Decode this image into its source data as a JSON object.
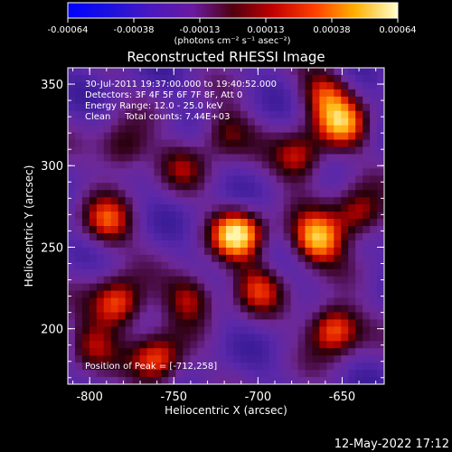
{
  "colorbar": {
    "ticks": [
      "-0.00064",
      "-0.00038",
      "-0.00013",
      "0.00013",
      "0.00038",
      "0.00064"
    ],
    "units": "(photons cm⁻² s⁻¹ asec⁻²)",
    "range": [
      -0.00064,
      0.00064
    ]
  },
  "chart_data": {
    "type": "heatmap",
    "title": "Reconstructed RHESSI Image",
    "xlabel": "Heliocentric X (arcsec)",
    "ylabel": "Heliocentric Y (arcsec)",
    "xlim": [
      -813,
      -625
    ],
    "ylim": [
      166,
      360
    ],
    "x_ticks": [
      "-800",
      "-750",
      "-700",
      "-650"
    ],
    "y_ticks": [
      "200",
      "250",
      "300",
      "350"
    ],
    "x_tick_values": [
      -800,
      -750,
      -700,
      -650
    ],
    "y_tick_values": [
      200,
      250,
      300,
      350
    ],
    "annotations": [
      "30-Jul-2011 19:37:00.000 to 19:40:52.000",
      "Detectors: 3F 4F 5F 6F 7F 8F, Att 0",
      "Energy Range: 12.0 - 25.0 keV",
      "Clean     Total counts: 7.44E+03"
    ],
    "peak_label": "Position of Peak = [-712,258]",
    "peak": [
      -712,
      258
    ],
    "hotspots": [
      {
        "x": -712,
        "y": 258,
        "v": 1.0
      },
      {
        "x": -665,
        "y": 255,
        "v": 0.95
      },
      {
        "x": -655,
        "y": 200,
        "v": 0.9
      },
      {
        "x": -760,
        "y": 180,
        "v": 0.8
      },
      {
        "x": -783,
        "y": 215,
        "v": 0.85
      },
      {
        "x": -650,
        "y": 325,
        "v": 0.75
      },
      {
        "x": -675,
        "y": 305,
        "v": 0.65
      },
      {
        "x": -740,
        "y": 220,
        "v": 0.6
      },
      {
        "x": -700,
        "y": 225,
        "v": 0.55
      },
      {
        "x": -790,
        "y": 265,
        "v": 0.65
      },
      {
        "x": -780,
        "y": 310,
        "v": 0.55
      },
      {
        "x": -720,
        "y": 320,
        "v": 0.5
      },
      {
        "x": -660,
        "y": 345,
        "v": 0.6
      },
      {
        "x": -640,
        "y": 270,
        "v": 0.65
      },
      {
        "x": -800,
        "y": 190,
        "v": 0.45
      },
      {
        "x": -745,
        "y": 300,
        "v": 0.35
      }
    ]
  },
  "footer": {
    "timestamp": "12-May-2022 17:12"
  }
}
